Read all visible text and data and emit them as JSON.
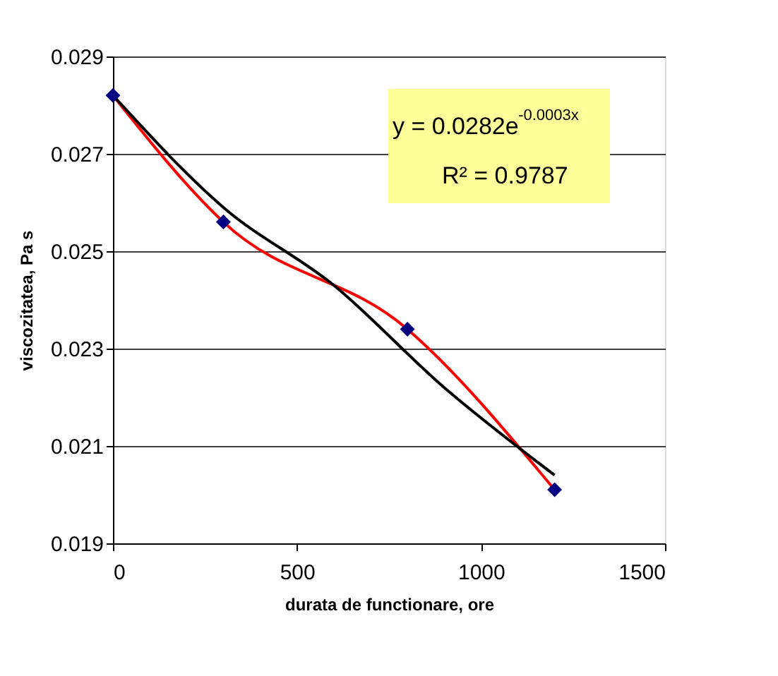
{
  "chart_data": {
    "type": "line",
    "xlabel": "durata de functionare, ore",
    "ylabel": "viscozitatea, Pa s",
    "xlim": [
      0,
      1500
    ],
    "xticks": [
      0,
      500,
      1000,
      1500
    ],
    "ylim": [
      0.019,
      0.029
    ],
    "yticks": [
      0.019,
      0.021,
      0.023,
      0.025,
      0.027,
      0.029
    ],
    "grid": "y",
    "series": [
      {
        "color": "#ff0000",
        "line_style": "solid",
        "marker": "none",
        "x": [
          0,
          300,
          800,
          1200
        ],
        "values": [
          0.0282,
          0.0256,
          0.0234,
          0.0201
        ]
      },
      {
        "color": "#000000",
        "line_style": "solid",
        "marker": "none",
        "x": [
          0,
          300,
          600,
          900,
          1200
        ],
        "values": [
          0.0282,
          0.0259,
          0.0243,
          0.0222,
          0.0204
        ]
      },
      {
        "type": "scatter",
        "color": "#000080",
        "marker": "diamond",
        "x": [
          0,
          300,
          800,
          1200
        ],
        "values": [
          0.0282,
          0.0256,
          0.0234,
          0.0201
        ]
      }
    ],
    "annotations": [
      "y = 0.0282e$^{-0.0003x}$",
      "R² = 0.9787"
    ]
  }
}
